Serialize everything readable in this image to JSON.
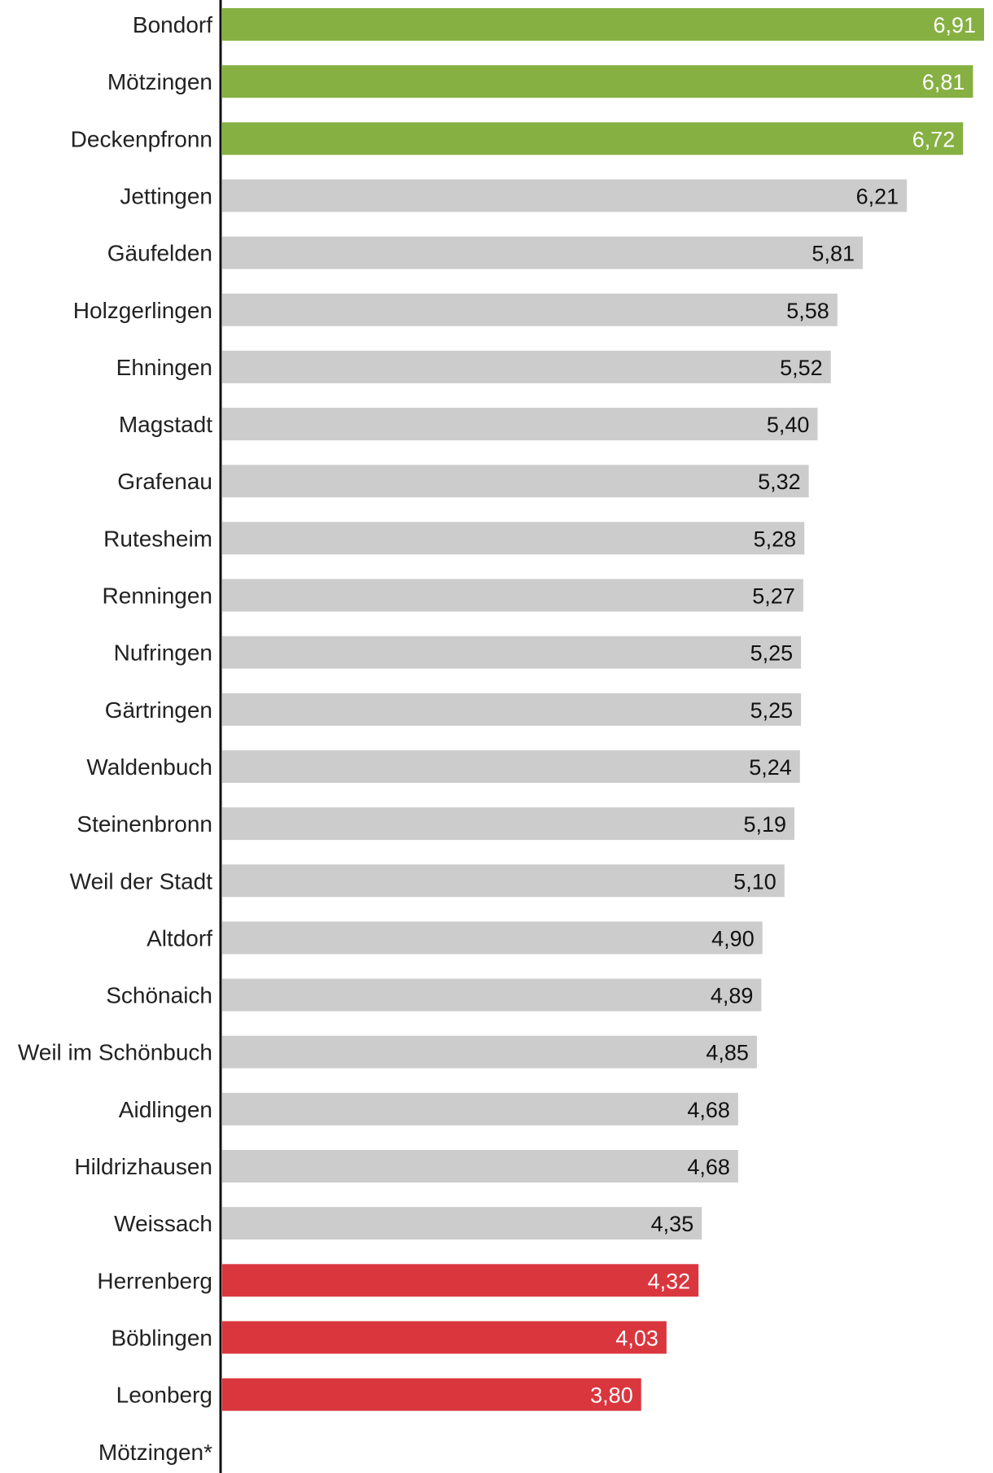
{
  "chart_data": {
    "type": "bar",
    "orientation": "horizontal",
    "title": "",
    "xlabel": "",
    "ylabel": "",
    "xlim": [
      0,
      6.91
    ],
    "grid": false,
    "categories": [
      "Bondorf",
      "Mötzingen",
      "Deckenpfronn",
      "Jettingen",
      "Gäufelden",
      "Holzgerlingen",
      "Ehningen",
      "Magstadt",
      "Grafenau",
      "Rutesheim",
      "Renningen",
      "Nufringen",
      "Gärtringen",
      "Waldenbuch",
      "Steinenbronn",
      "Weil der Stadt",
      "Altdorf",
      "Schönaich",
      "Weil im Schönbuch",
      "Aidlingen",
      "Hildrizhausen",
      "Weissach",
      "Herrenberg",
      "Böblingen",
      "Leonberg",
      "Mötzingen*"
    ],
    "values": [
      6.91,
      6.81,
      6.72,
      6.21,
      5.81,
      5.58,
      5.52,
      5.4,
      5.32,
      5.28,
      5.27,
      5.25,
      5.25,
      5.24,
      5.19,
      5.1,
      4.9,
      4.89,
      4.85,
      4.68,
      4.68,
      4.35,
      4.32,
      4.03,
      3.8,
      null
    ],
    "value_labels": [
      "6,91",
      "6,81",
      "6,72",
      "6,21",
      "5,81",
      "5,58",
      "5,52",
      "5,40",
      "5,32",
      "5,28",
      "5,27",
      "5,25",
      "5,25",
      "5,24",
      "5,19",
      "5,10",
      "4,90",
      "4,89",
      "4,85",
      "4,68",
      "4,68",
      "4,35",
      "4,32",
      "4,03",
      "3,80",
      ""
    ],
    "bar_groups": [
      "top",
      "top",
      "top",
      "mid",
      "mid",
      "mid",
      "mid",
      "mid",
      "mid",
      "mid",
      "mid",
      "mid",
      "mid",
      "mid",
      "mid",
      "mid",
      "mid",
      "mid",
      "mid",
      "mid",
      "mid",
      "mid",
      "bottom",
      "bottom",
      "bottom",
      "none"
    ],
    "colors": {
      "top": "#86b042",
      "mid": "#cccccc",
      "bottom": "#da363e",
      "axis": "#111111",
      "label_on_colored": "#ffffff",
      "label_on_gray": "#111111"
    }
  }
}
